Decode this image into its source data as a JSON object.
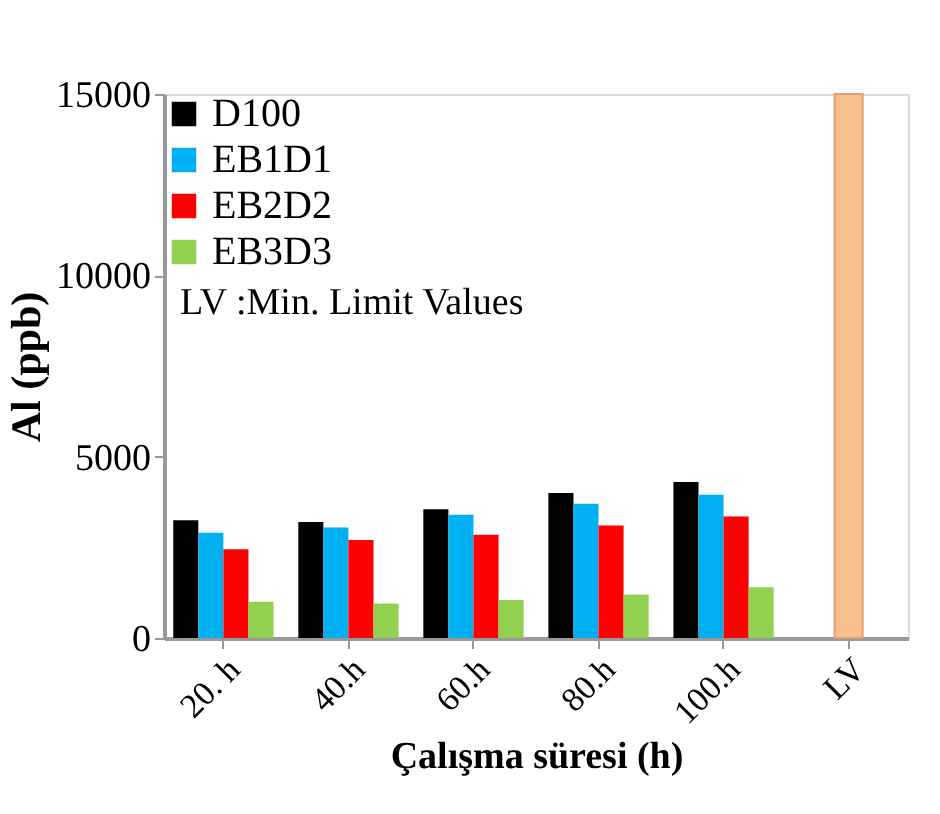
{
  "chart_data": {
    "type": "bar",
    "xlabel": "Çalışma  süresi (h)",
    "ylabel": "Al  (ppb)",
    "categories": [
      "20. h",
      "40.h",
      "60.h",
      "80.h",
      "100.h",
      "LV"
    ],
    "series": [
      {
        "name": "D100",
        "color": "#000000",
        "values": [
          3250,
          3200,
          3550,
          4000,
          4300,
          null
        ]
      },
      {
        "name": "EB1D1",
        "color": "#00b0f0",
        "values": [
          2900,
          3050,
          3400,
          3700,
          3950,
          null
        ]
      },
      {
        "name": "EB2D2",
        "color": "#ff0000",
        "values": [
          2450,
          2700,
          2850,
          3100,
          3350,
          null
        ]
      },
      {
        "name": "EB3D3",
        "color": "#92d050",
        "values": [
          1000,
          950,
          1050,
          1200,
          1400,
          null
        ]
      },
      {
        "color": "#fac090",
        "values": [
          null,
          null,
          null,
          null,
          null,
          15000
        ]
      }
    ],
    "ylim": [
      0,
      15000
    ],
    "yticks": [
      0,
      5000,
      10000,
      15000
    ],
    "grid": false,
    "legend": "top left",
    "annotations": [
      "LV :Min. Limit Values"
    ]
  }
}
